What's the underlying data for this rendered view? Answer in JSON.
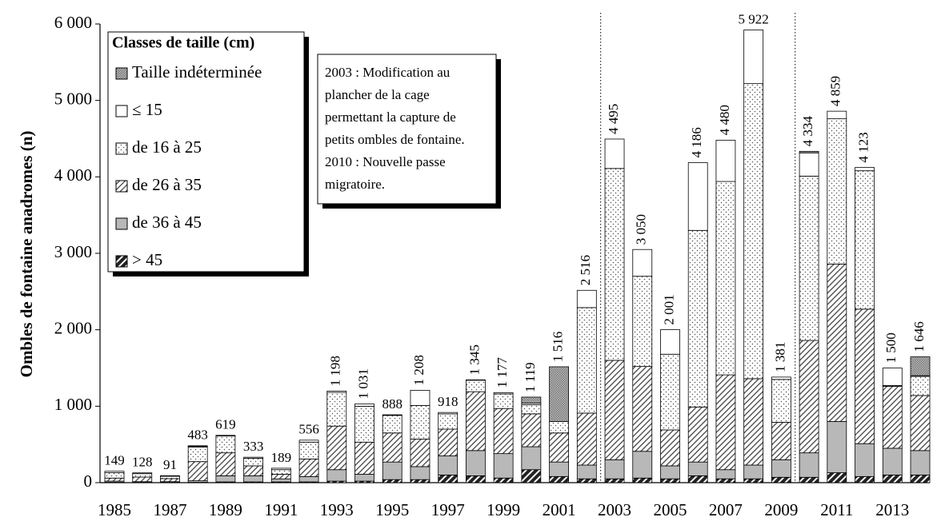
{
  "chart_data": {
    "type": "stacked_bar",
    "y_label": "Ombles de fontaine anadromes (n)",
    "categories": [
      "1985",
      null,
      "1987",
      null,
      "1989",
      null,
      "1991",
      null,
      "1993",
      null,
      "1995",
      null,
      "1997",
      null,
      "1999",
      null,
      "2001",
      null,
      "2003",
      null,
      "2005",
      null,
      "2007",
      null,
      "2009",
      null,
      "2011",
      null,
      "2013",
      null
    ],
    "series": [
      {
        "name": "> 45",
        "color": "#222222",
        "values": [
          5,
          3,
          3,
          5,
          10,
          10,
          10,
          10,
          20,
          20,
          40,
          40,
          100,
          90,
          60,
          170,
          80,
          50,
          50,
          60,
          50,
          90,
          50,
          50,
          70,
          70,
          130,
          80,
          100,
          100
        ]
      },
      {
        "name": "de 36 à 45",
        "color": "#b8b8b8",
        "values": [
          15,
          10,
          10,
          20,
          80,
          80,
          40,
          70,
          150,
          90,
          230,
          170,
          250,
          330,
          320,
          300,
          190,
          180,
          250,
          350,
          170,
          180,
          120,
          180,
          230,
          320,
          670,
          430,
          350,
          320
        ]
      },
      {
        "name": "de 26 à 35",
        "color": "#444444",
        "values": [
          40,
          60,
          40,
          250,
          300,
          130,
          60,
          230,
          570,
          420,
          380,
          360,
          350,
          770,
          590,
          430,
          380,
          680,
          1300,
          1110,
          470,
          720,
          1240,
          1130,
          490,
          1470,
          2060,
          1760,
          810,
          720
        ]
      },
      {
        "name": "de 16 à 25",
        "color": "#555555",
        "values": [
          70,
          45,
          30,
          190,
          220,
          100,
          60,
          220,
          440,
          470,
          230,
          440,
          200,
          150,
          190,
          120,
          150,
          1380,
          2510,
          1180,
          990,
          2310,
          2530,
          3860,
          560,
          2150,
          1900,
          1810,
          10,
          250
        ]
      },
      {
        "name": "≤ 15",
        "color": "#ffffff",
        "values": [
          19,
          10,
          8,
          10,
          9,
          13,
          19,
          26,
          18,
          31,
          8,
          198,
          18,
          5,
          17,
          20,
          0,
          226,
          385,
          350,
          321,
          886,
          540,
          702,
          31,
          304,
          99,
          43,
          230,
          10
        ]
      },
      {
        "name": "Taille indéterminée",
        "color": "#777777",
        "values": [
          0,
          0,
          0,
          8,
          0,
          0,
          0,
          0,
          0,
          0,
          0,
          0,
          0,
          0,
          0,
          79,
          716,
          0,
          0,
          0,
          0,
          0,
          0,
          0,
          0,
          20,
          0,
          0,
          0,
          246
        ]
      }
    ],
    "totals": [
      149,
      128,
      91,
      483,
      619,
      333,
      189,
      556,
      1198,
      1031,
      888,
      1208,
      918,
      1345,
      1177,
      1119,
      1516,
      2516,
      4495,
      3050,
      2001,
      4186,
      4480,
      5922,
      1381,
      4334,
      4859,
      4123,
      1500,
      1646
    ],
    "total_labels": [
      "149",
      "128",
      "91",
      "483",
      "619",
      "333",
      "189",
      "556",
      "1 198",
      "1 031",
      "888",
      "1 208",
      "918",
      "1 345",
      "1 177",
      "1 119",
      "1 516",
      "2 516",
      "4 495",
      "3 050",
      "2 001",
      "4 186",
      "4 480",
      "5 922",
      "1 381",
      "4 334",
      "4 859",
      "4 123",
      "1 500",
      "1 646"
    ],
    "ylim": [
      0,
      6000
    ],
    "yticks": [
      0,
      {
        "value": 1000,
        "label": "1 000"
      },
      {
        "value": 2000,
        "label": "2 000"
      },
      {
        "value": 3000,
        "label": "3 000"
      },
      {
        "value": 4000,
        "label": "4 000"
      },
      {
        "value": 5000,
        "label": "5 000"
      },
      {
        "value": 6000,
        "label": "6 000"
      }
    ],
    "legend_title": "Classes de taille (cm)",
    "legend": "top-left",
    "annotation": [
      "2003 : Modification au",
      "plancher de la cage",
      "permettant la capture de",
      "petits ombles de fontaine.",
      "2010 : Nouvelle passe",
      "migratoire."
    ]
  }
}
